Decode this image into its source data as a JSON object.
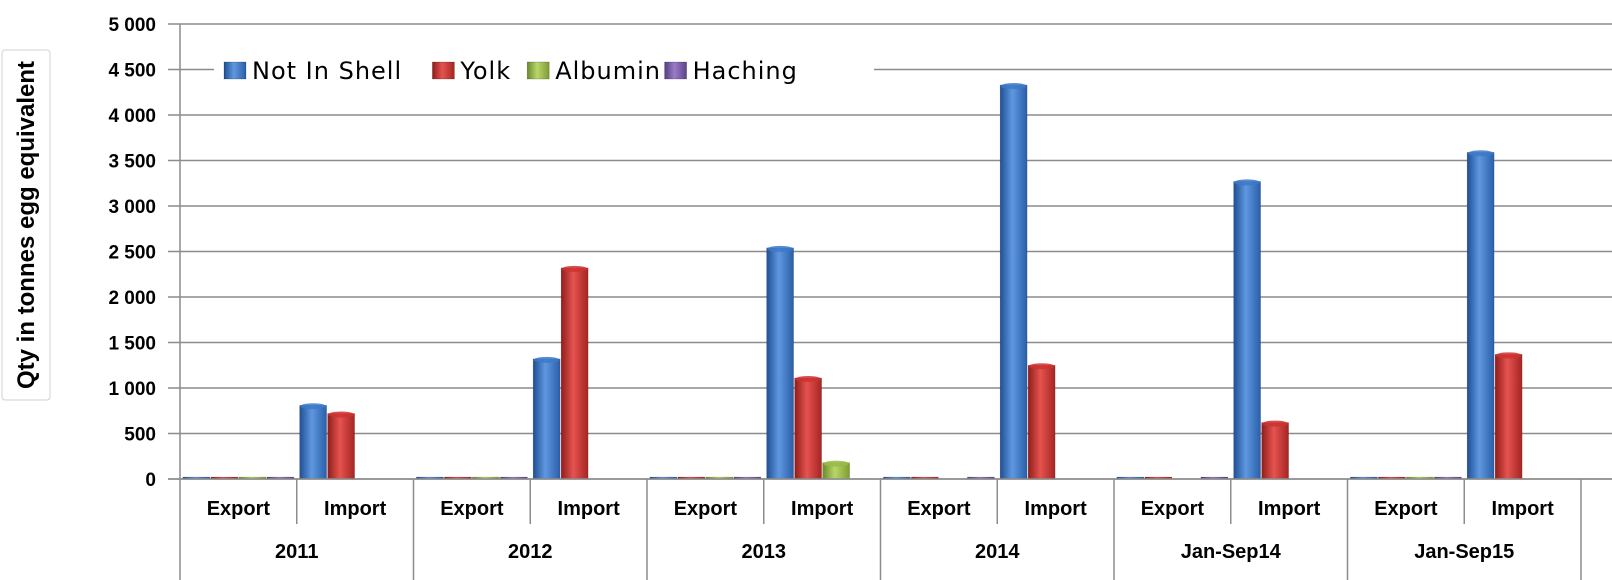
{
  "chart_data": {
    "type": "bar",
    "title": "",
    "ylabel": "Qty in tonnes egg equivalent",
    "xlabel": "",
    "ylim": [
      0,
      5000
    ],
    "ytick_step": 500,
    "ytick_labels": [
      "0",
      "500",
      "1 000",
      "1 500",
      "2 000",
      "2 500",
      "3 000",
      "3 500",
      "4 000",
      "4 500",
      "5 000"
    ],
    "grid": true,
    "legend_position": "top-left",
    "groups": [
      {
        "label": "2011",
        "categories": [
          "Export",
          "Import"
        ]
      },
      {
        "label": "2012",
        "categories": [
          "Export",
          "Import"
        ]
      },
      {
        "label": "2013",
        "categories": [
          "Export",
          "Import"
        ]
      },
      {
        "label": "2014",
        "categories": [
          "Export",
          "Import"
        ]
      },
      {
        "label": "Jan-Sep14",
        "categories": [
          "Export",
          "Import"
        ]
      },
      {
        "label": "Jan-Sep15",
        "categories": [
          "Export",
          "Import"
        ]
      }
    ],
    "series": [
      {
        "name": "Not In Shell",
        "color": "#3c79c8",
        "values": [
          5,
          810,
          5,
          1320,
          5,
          2540,
          5,
          4330,
          5,
          3270,
          5,
          3590
        ]
      },
      {
        "name": "Yolk",
        "color": "#cc3330",
        "values": [
          5,
          720,
          5,
          2320,
          5,
          1110,
          5,
          1250,
          5,
          620,
          5,
          1370
        ]
      },
      {
        "name": "Albumin",
        "color": "#98bb45",
        "values": [
          5,
          0,
          5,
          0,
          5,
          180,
          0,
          0,
          0,
          0,
          5,
          0
        ]
      },
      {
        "name": "Haching",
        "color": "#7a5aa6",
        "values": [
          5,
          0,
          5,
          0,
          5,
          0,
          10,
          0,
          10,
          0,
          10,
          0
        ]
      }
    ]
  }
}
